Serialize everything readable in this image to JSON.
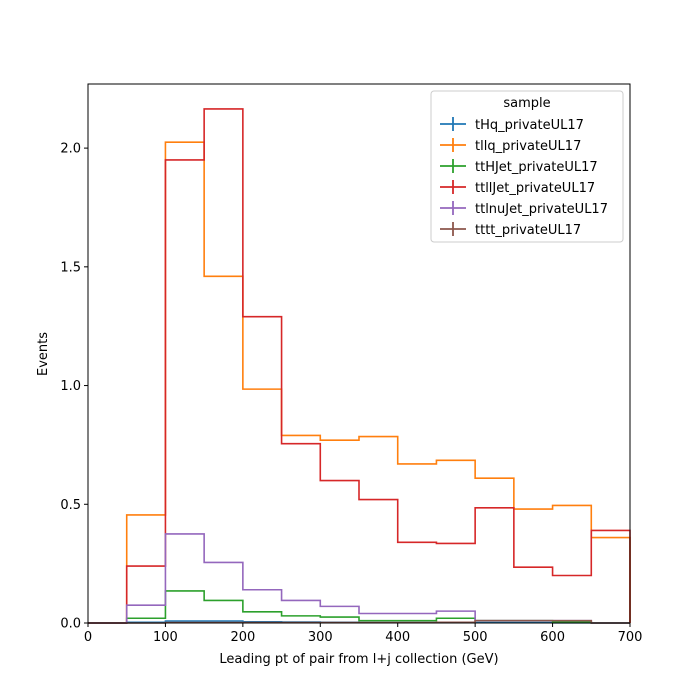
{
  "chart_data": {
    "type": "histogram",
    "title": "",
    "xlabel": "Leading pt of pair from l+j collection (GeV)",
    "ylabel": "Events",
    "xlim": [
      0,
      700
    ],
    "ylim": [
      0,
      2.27
    ],
    "xticks": [
      0,
      100,
      200,
      300,
      400,
      500,
      600,
      700
    ],
    "xtick_labels": [
      "0",
      "100",
      "200",
      "300",
      "400",
      "500",
      "600",
      "700"
    ],
    "yticks": [
      0,
      0.5,
      1.0,
      1.5,
      2.0
    ],
    "ytick_labels": [
      "0.0",
      "0.5",
      "1.0",
      "1.5",
      "2.0"
    ],
    "bin_edges": [
      0,
      50,
      100,
      150,
      200,
      250,
      300,
      350,
      400,
      450,
      500,
      550,
      600,
      650,
      700
    ],
    "grid": false,
    "legend": {
      "title": "sample",
      "position": "top-right"
    },
    "series": [
      {
        "name": "tHq_privateUL17",
        "color": "#1f77b4",
        "values": [
          0,
          0.003,
          0.008,
          0.008,
          0.005,
          0.004,
          0.003,
          0.002,
          0.002,
          0.002,
          0.002,
          0.002,
          0.001,
          0
        ]
      },
      {
        "name": "tllq_privateUL17",
        "color": "#ff7f0e",
        "values": [
          0,
          0.455,
          2.025,
          1.46,
          0.985,
          0.79,
          0.77,
          0.785,
          0.67,
          0.685,
          0.61,
          0.48,
          0.495,
          0.36
        ]
      },
      {
        "name": "ttHJet_privateUL17",
        "color": "#2ca02c",
        "values": [
          0,
          0.02,
          0.135,
          0.095,
          0.047,
          0.03,
          0.025,
          0.01,
          0.01,
          0.02,
          0.01,
          0.01,
          0.005,
          0
        ]
      },
      {
        "name": "ttllJet_privateUL17",
        "color": "#d62728",
        "values": [
          0,
          0.24,
          1.95,
          2.165,
          1.29,
          0.755,
          0.6,
          0.52,
          0.34,
          0.335,
          0.485,
          0.235,
          0.2,
          0.39
        ]
      },
      {
        "name": "ttlnuJet_privateUL17",
        "color": "#9467bd",
        "values": [
          0,
          0.075,
          0.375,
          0.255,
          0.14,
          0.095,
          0.07,
          0.04,
          0.04,
          0.05,
          0.01,
          0.01,
          0.01,
          0
        ]
      },
      {
        "name": "tttt_privateUL17",
        "color": "#8c564b",
        "values": [
          0,
          0,
          0.002,
          0.002,
          0.002,
          0.002,
          0.002,
          0.002,
          0.002,
          0.003,
          0.01,
          0.01,
          0.01,
          0
        ]
      }
    ]
  }
}
